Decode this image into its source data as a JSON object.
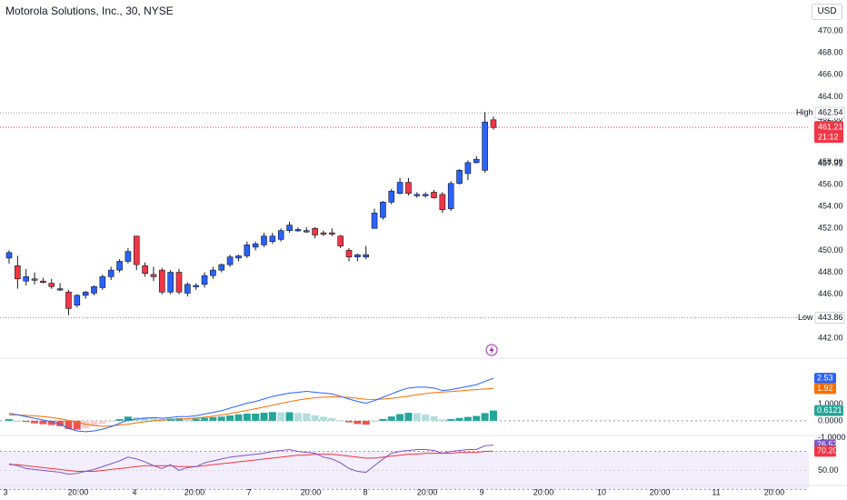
{
  "header": {
    "title": "Motorola Solutions, Inc., 30, NYSE",
    "currency": "USD"
  },
  "colors": {
    "up": "#2962ff",
    "down": "#f23645",
    "text": "#131722",
    "axis_text": "#131722",
    "grid_dots": "#9598a1",
    "macd_line": "#2962ff",
    "signal_line": "#ff6d00",
    "hist_pos_strong": "#26a69a",
    "hist_pos_weak": "#b2dfdb",
    "hist_neg_strong": "#ef5350",
    "hist_neg_weak": "#ffcdd2",
    "rsi_line": "#7e57c2",
    "rsi_ma": "#f23645",
    "rsi_band": "#f3eefb"
  },
  "chart_data": [
    {
      "type": "candlestick",
      "interval": "30",
      "ylim": [
        441,
        471
      ],
      "yticks": [
        "442.00",
        "444.00",
        "446.00",
        "448.00",
        "450.00",
        "452.00",
        "454.00",
        "456.00",
        "458.00",
        "460.00",
        "462.00",
        "464.00",
        "466.00",
        "468.00",
        "470.00"
      ],
      "xticks": [
        "3",
        "20:00",
        "4",
        "20:00",
        "7",
        "20:00",
        "8",
        "20:00",
        "9",
        "20:00",
        "10",
        "20:00",
        "11",
        "20:00"
      ],
      "candles": [
        {
          "o": 449.3,
          "h": 450.0,
          "l": 448.8,
          "c": 449.8
        },
        {
          "o": 448.6,
          "h": 449.5,
          "l": 446.5,
          "c": 447.4
        },
        {
          "o": 447.2,
          "h": 448.3,
          "l": 446.8,
          "c": 447.6
        },
        {
          "o": 447.4,
          "h": 448.0,
          "l": 446.9,
          "c": 447.3
        },
        {
          "o": 447.2,
          "h": 447.5,
          "l": 447.0,
          "c": 447.1
        },
        {
          "o": 447.0,
          "h": 447.4,
          "l": 446.5,
          "c": 446.7
        },
        {
          "o": 446.5,
          "h": 447.0,
          "l": 446.3,
          "c": 446.5
        },
        {
          "o": 446.2,
          "h": 446.4,
          "l": 444.1,
          "c": 444.7
        },
        {
          "o": 445.0,
          "h": 446.0,
          "l": 444.8,
          "c": 445.9
        },
        {
          "o": 445.9,
          "h": 446.3,
          "l": 445.6,
          "c": 446.2
        },
        {
          "o": 446.1,
          "h": 446.8,
          "l": 445.9,
          "c": 446.7
        },
        {
          "o": 446.6,
          "h": 447.8,
          "l": 446.4,
          "c": 447.6
        },
        {
          "o": 447.6,
          "h": 448.5,
          "l": 447.3,
          "c": 448.2
        },
        {
          "o": 448.2,
          "h": 449.2,
          "l": 448.0,
          "c": 449.0
        },
        {
          "o": 449.0,
          "h": 450.2,
          "l": 448.8,
          "c": 449.9
        },
        {
          "o": 451.3,
          "h": 451.3,
          "l": 448.2,
          "c": 448.7
        },
        {
          "o": 448.6,
          "h": 448.9,
          "l": 447.6,
          "c": 447.9
        },
        {
          "o": 447.8,
          "h": 448.5,
          "l": 447.2,
          "c": 447.6
        },
        {
          "o": 448.2,
          "h": 448.4,
          "l": 446.0,
          "c": 446.2
        },
        {
          "o": 446.2,
          "h": 448.2,
          "l": 446.0,
          "c": 448.0
        },
        {
          "o": 448.0,
          "h": 448.3,
          "l": 446.0,
          "c": 446.2
        },
        {
          "o": 446.1,
          "h": 447.1,
          "l": 445.8,
          "c": 446.9
        },
        {
          "o": 446.8,
          "h": 447.0,
          "l": 446.4,
          "c": 446.8
        },
        {
          "o": 446.9,
          "h": 448.0,
          "l": 446.6,
          "c": 447.7
        },
        {
          "o": 447.7,
          "h": 448.5,
          "l": 447.4,
          "c": 448.2
        },
        {
          "o": 448.2,
          "h": 448.8,
          "l": 448.0,
          "c": 448.7
        },
        {
          "o": 448.7,
          "h": 449.6,
          "l": 448.5,
          "c": 449.4
        },
        {
          "o": 449.3,
          "h": 449.6,
          "l": 449.0,
          "c": 449.5
        },
        {
          "o": 449.5,
          "h": 450.8,
          "l": 449.3,
          "c": 450.5
        },
        {
          "o": 450.3,
          "h": 450.8,
          "l": 450.0,
          "c": 450.6
        },
        {
          "o": 450.5,
          "h": 451.6,
          "l": 450.3,
          "c": 451.3
        },
        {
          "o": 450.8,
          "h": 451.6,
          "l": 450.6,
          "c": 451.3
        },
        {
          "o": 451.0,
          "h": 452.0,
          "l": 450.8,
          "c": 451.8
        },
        {
          "o": 451.8,
          "h": 452.6,
          "l": 451.6,
          "c": 452.3
        },
        {
          "o": 451.8,
          "h": 452.1,
          "l": 451.7,
          "c": 451.9
        },
        {
          "o": 451.8,
          "h": 452.1,
          "l": 451.6,
          "c": 451.8
        },
        {
          "o": 452.0,
          "h": 452.1,
          "l": 451.1,
          "c": 451.4
        },
        {
          "o": 451.6,
          "h": 451.8,
          "l": 451.3,
          "c": 451.5
        },
        {
          "o": 451.6,
          "h": 452.0,
          "l": 451.3,
          "c": 451.5
        },
        {
          "o": 451.3,
          "h": 451.4,
          "l": 450.2,
          "c": 450.4
        },
        {
          "o": 450.0,
          "h": 450.2,
          "l": 449.0,
          "c": 449.4
        },
        {
          "o": 449.4,
          "h": 449.7,
          "l": 449.0,
          "c": 449.6
        },
        {
          "o": 449.4,
          "h": 450.4,
          "l": 449.2,
          "c": 449.6
        },
        {
          "o": 452.0,
          "h": 453.8,
          "l": 452.0,
          "c": 453.4
        },
        {
          "o": 453.0,
          "h": 454.5,
          "l": 452.8,
          "c": 454.4
        },
        {
          "o": 454.4,
          "h": 455.6,
          "l": 454.2,
          "c": 455.4
        },
        {
          "o": 455.2,
          "h": 456.6,
          "l": 455.1,
          "c": 456.2
        },
        {
          "o": 456.2,
          "h": 456.6,
          "l": 455.0,
          "c": 455.2
        },
        {
          "o": 455.0,
          "h": 455.3,
          "l": 454.8,
          "c": 455.1
        },
        {
          "o": 455.0,
          "h": 455.3,
          "l": 454.8,
          "c": 455.1
        },
        {
          "o": 455.3,
          "h": 455.5,
          "l": 454.7,
          "c": 454.8
        },
        {
          "o": 455.1,
          "h": 455.3,
          "l": 453.4,
          "c": 453.7
        },
        {
          "o": 453.8,
          "h": 456.3,
          "l": 453.6,
          "c": 456.1
        },
        {
          "o": 456.1,
          "h": 457.4,
          "l": 456.0,
          "c": 457.3
        },
        {
          "o": 457.0,
          "h": 458.2,
          "l": 456.4,
          "c": 458.0
        },
        {
          "o": 458.0,
          "h": 458.6,
          "l": 457.9,
          "c": 458.3
        },
        {
          "o": 457.3,
          "h": 462.6,
          "l": 457.1,
          "c": 461.7
        },
        {
          "o": 461.9,
          "h": 462.2,
          "l": 461.0,
          "c": 461.2
        }
      ],
      "high": {
        "label": "High",
        "value": "462.54"
      },
      "low": {
        "label": "Low",
        "value": "443.86"
      },
      "last": {
        "value": "461.21",
        "countdown": "21:12"
      },
      "mid_labels": [
        "457.91"
      ]
    },
    {
      "type": "macd",
      "ylim": [
        -0.6,
        3.4
      ],
      "yticks": [
        "1.0000",
        "0.0000",
        "-1.0000"
      ],
      "macd_value": "2.53",
      "signal_value": "1.92",
      "hist_value": "0.6121",
      "macd": [
        0.45,
        0.35,
        0.25,
        0.15,
        0.05,
        -0.05,
        -0.2,
        -0.45,
        -0.6,
        -0.65,
        -0.6,
        -0.5,
        -0.35,
        -0.15,
        0.05,
        0.1,
        0.15,
        0.2,
        0.15,
        0.2,
        0.25,
        0.25,
        0.3,
        0.4,
        0.5,
        0.6,
        0.75,
        0.9,
        1.05,
        1.15,
        1.3,
        1.45,
        1.55,
        1.65,
        1.7,
        1.75,
        1.7,
        1.65,
        1.6,
        1.45,
        1.3,
        1.15,
        1.05,
        1.2,
        1.4,
        1.6,
        1.8,
        1.95,
        2.0,
        2.0,
        1.95,
        1.8,
        1.85,
        1.95,
        2.05,
        2.15,
        2.35,
        2.53
      ],
      "signal": [
        0.35,
        0.35,
        0.32,
        0.3,
        0.25,
        0.2,
        0.12,
        0.03,
        -0.08,
        -0.2,
        -0.28,
        -0.32,
        -0.3,
        -0.25,
        -0.2,
        -0.12,
        -0.06,
        0.0,
        0.04,
        0.07,
        0.1,
        0.13,
        0.17,
        0.22,
        0.28,
        0.35,
        0.43,
        0.52,
        0.62,
        0.72,
        0.82,
        0.93,
        1.04,
        1.14,
        1.23,
        1.31,
        1.37,
        1.41,
        1.43,
        1.42,
        1.39,
        1.34,
        1.28,
        1.27,
        1.29,
        1.34,
        1.4,
        1.47,
        1.55,
        1.62,
        1.68,
        1.71,
        1.74,
        1.78,
        1.82,
        1.86,
        1.89,
        1.92
      ],
      "hist": [
        0.1,
        0.0,
        -0.07,
        -0.15,
        -0.2,
        -0.25,
        -0.32,
        -0.48,
        -0.52,
        -0.45,
        -0.32,
        -0.18,
        -0.05,
        0.1,
        0.25,
        0.22,
        0.21,
        0.2,
        0.11,
        0.13,
        0.15,
        0.12,
        0.13,
        0.18,
        0.22,
        0.25,
        0.32,
        0.38,
        0.43,
        0.43,
        0.48,
        0.52,
        0.51,
        0.51,
        0.47,
        0.44,
        0.33,
        0.24,
        0.17,
        0.03,
        -0.09,
        -0.19,
        -0.23,
        -0.07,
        0.11,
        0.26,
        0.4,
        0.48,
        0.45,
        0.38,
        0.27,
        0.09,
        0.11,
        0.17,
        0.23,
        0.29,
        0.46,
        0.61
      ]
    },
    {
      "type": "rsi",
      "ylim": [
        38,
        82
      ],
      "band": [
        30,
        70
      ],
      "yticks": [
        "50.00"
      ],
      "rsi_value": "76.57",
      "ma_value": "70.20",
      "rsi": [
        57,
        55,
        52,
        51,
        50,
        49,
        48,
        46,
        47,
        49,
        51,
        54,
        57,
        60,
        64,
        62,
        59,
        55,
        52,
        56,
        50,
        53,
        54,
        58,
        60,
        62,
        64,
        65,
        66,
        67,
        68,
        70,
        71,
        72,
        70,
        69,
        68,
        64,
        62,
        58,
        52,
        49,
        48,
        55,
        62,
        68,
        70,
        71,
        72,
        72,
        71,
        68,
        70,
        71,
        72,
        72,
        76,
        76.57
      ],
      "ma": [
        56,
        56,
        55,
        54,
        53,
        52,
        51,
        50,
        49,
        49,
        49,
        50,
        51,
        52,
        53,
        54,
        55,
        55,
        55,
        55,
        54,
        54,
        54,
        55,
        56,
        57,
        58,
        59,
        60,
        61,
        62,
        63,
        64,
        65,
        66,
        66,
        67,
        67,
        67,
        66,
        65,
        64,
        63,
        63,
        64,
        65,
        66,
        67,
        67,
        68,
        68,
        68,
        68,
        69,
        69,
        69,
        70,
        70.2
      ]
    }
  ]
}
